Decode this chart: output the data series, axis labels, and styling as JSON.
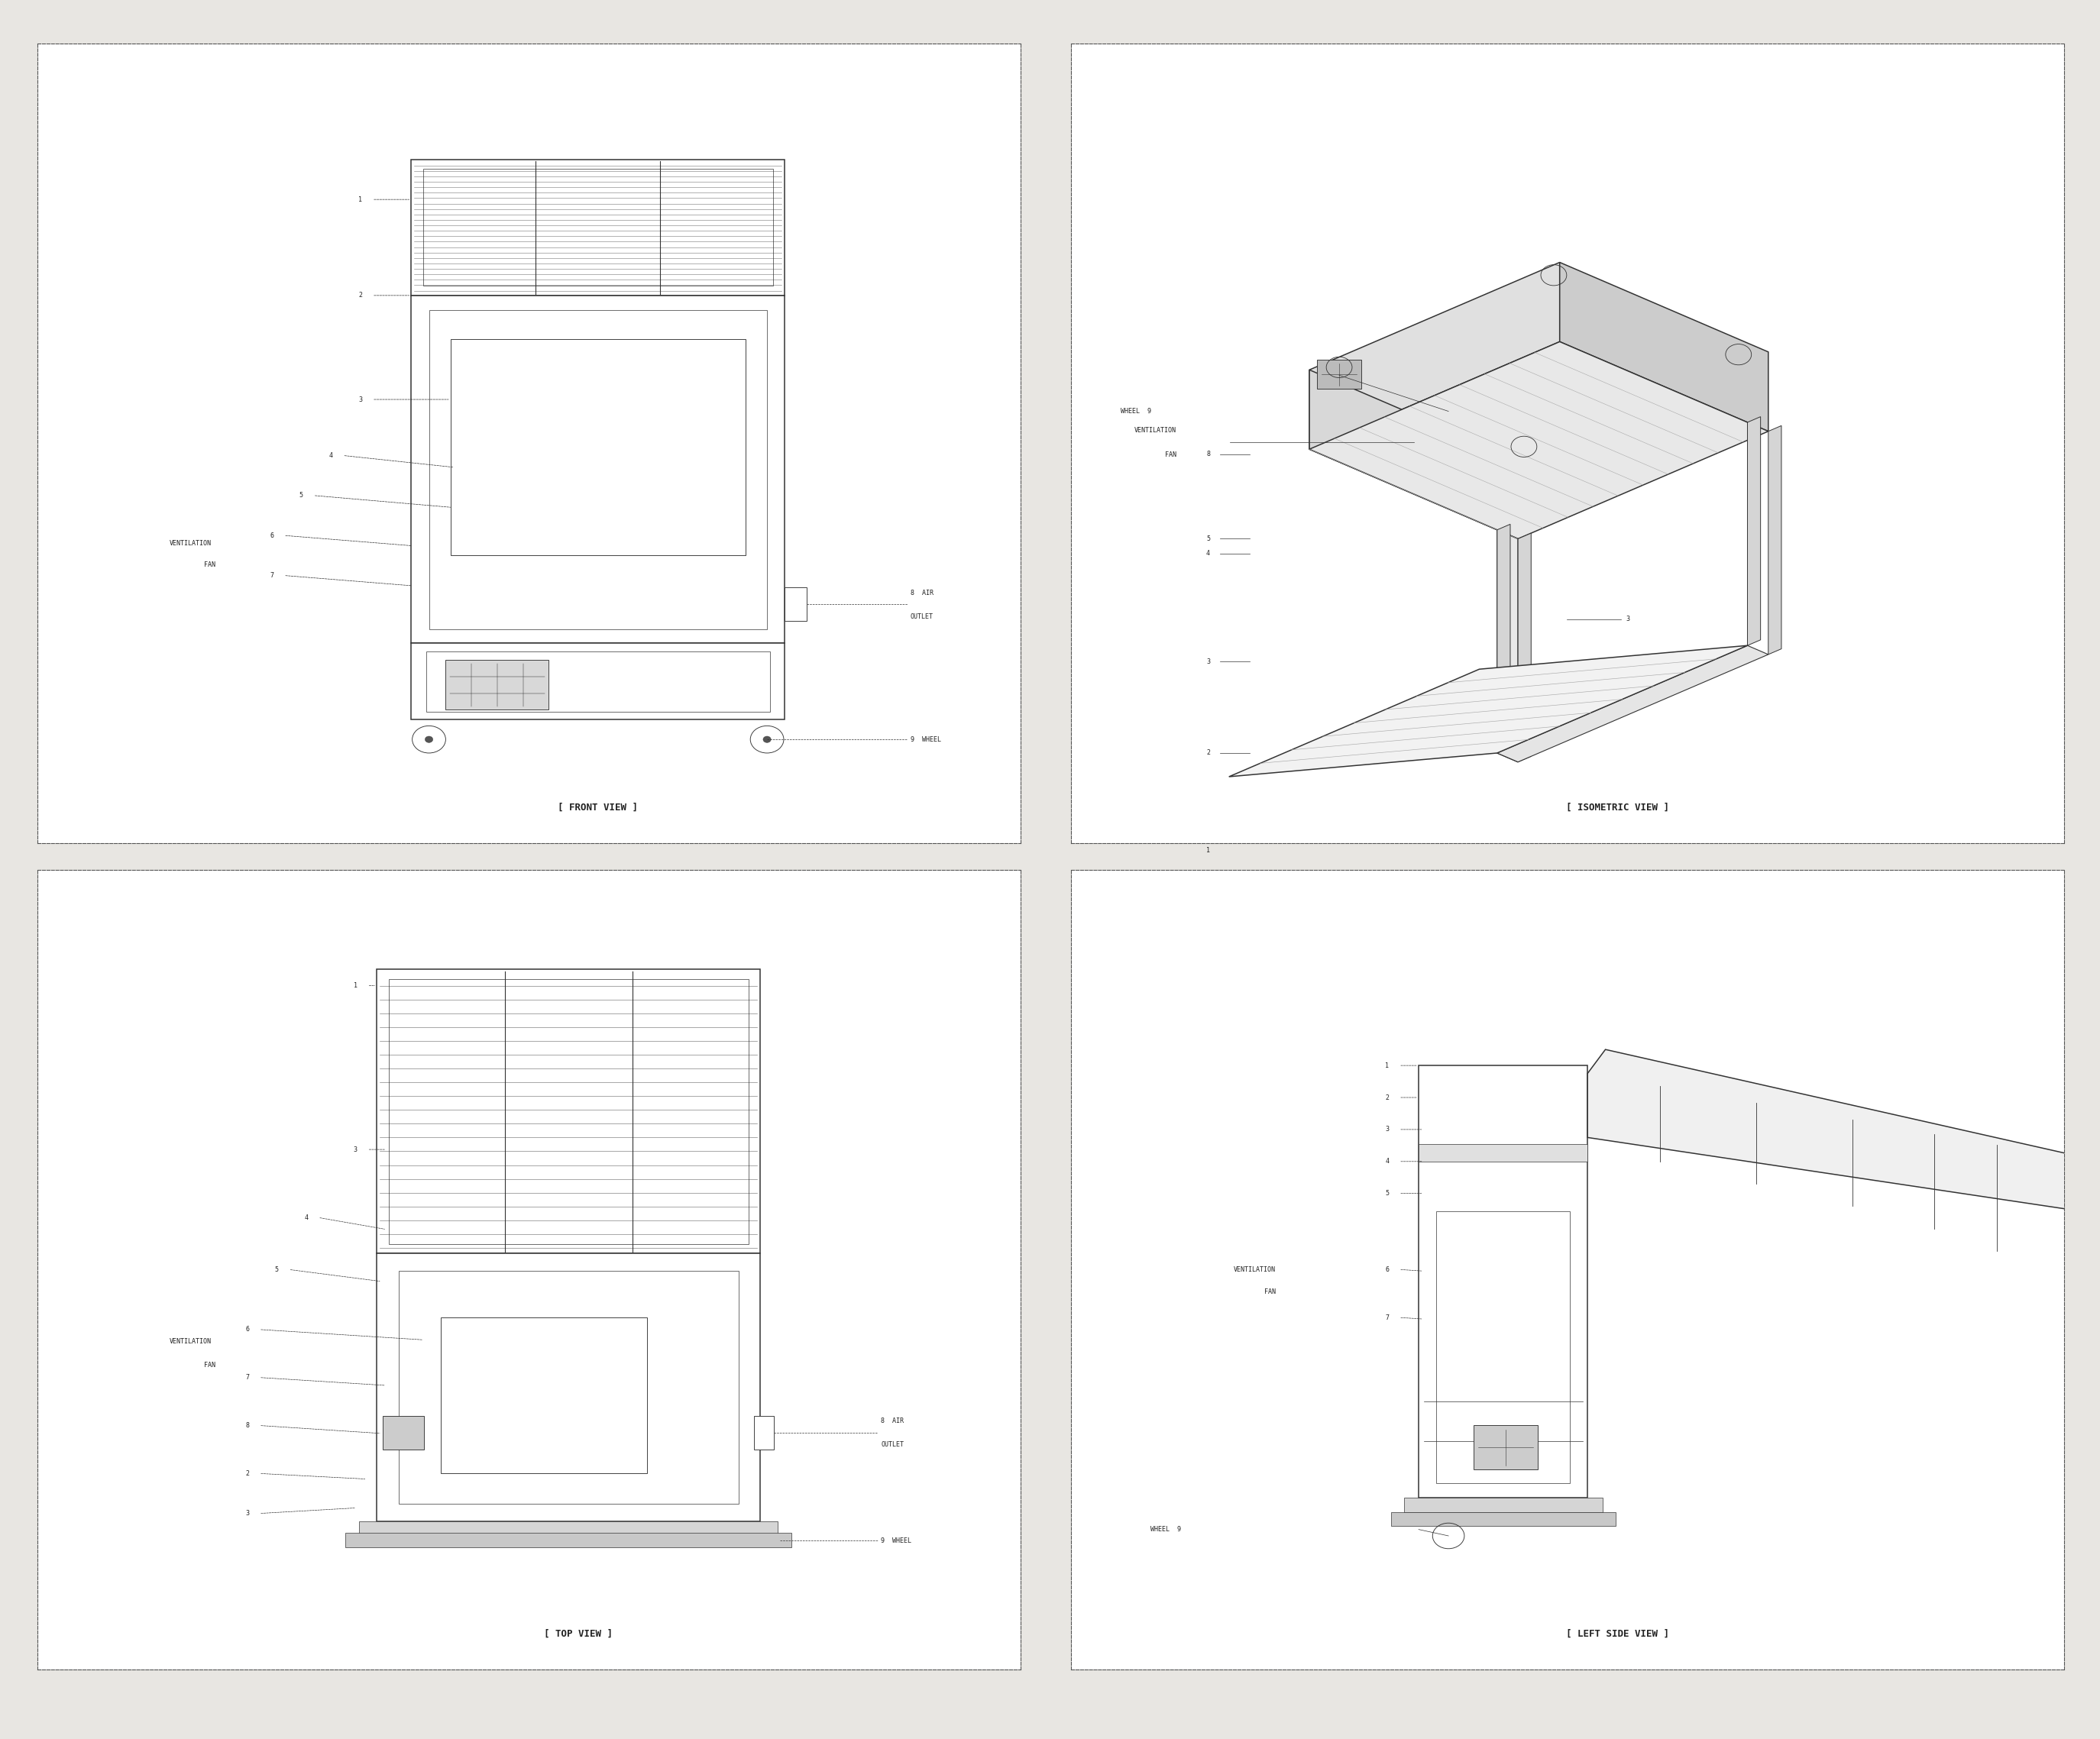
{
  "bg_color": "#ffffff",
  "panel_bg": "#ffffff",
  "outer_bg": "#e8e6e2",
  "line_color": "#333333",
  "border_color": "#555555",
  "title_color": "#222222",
  "label_color": "#222222",
  "font_size_title": 9,
  "font_size_label": 6,
  "font_size_num": 6,
  "views": [
    "[ FRONT VIEW ]",
    "[ ISOMETRIC VIEW ]",
    "[ TOP VIEW ]",
    "[ LEFT SIDE VIEW ]"
  ]
}
